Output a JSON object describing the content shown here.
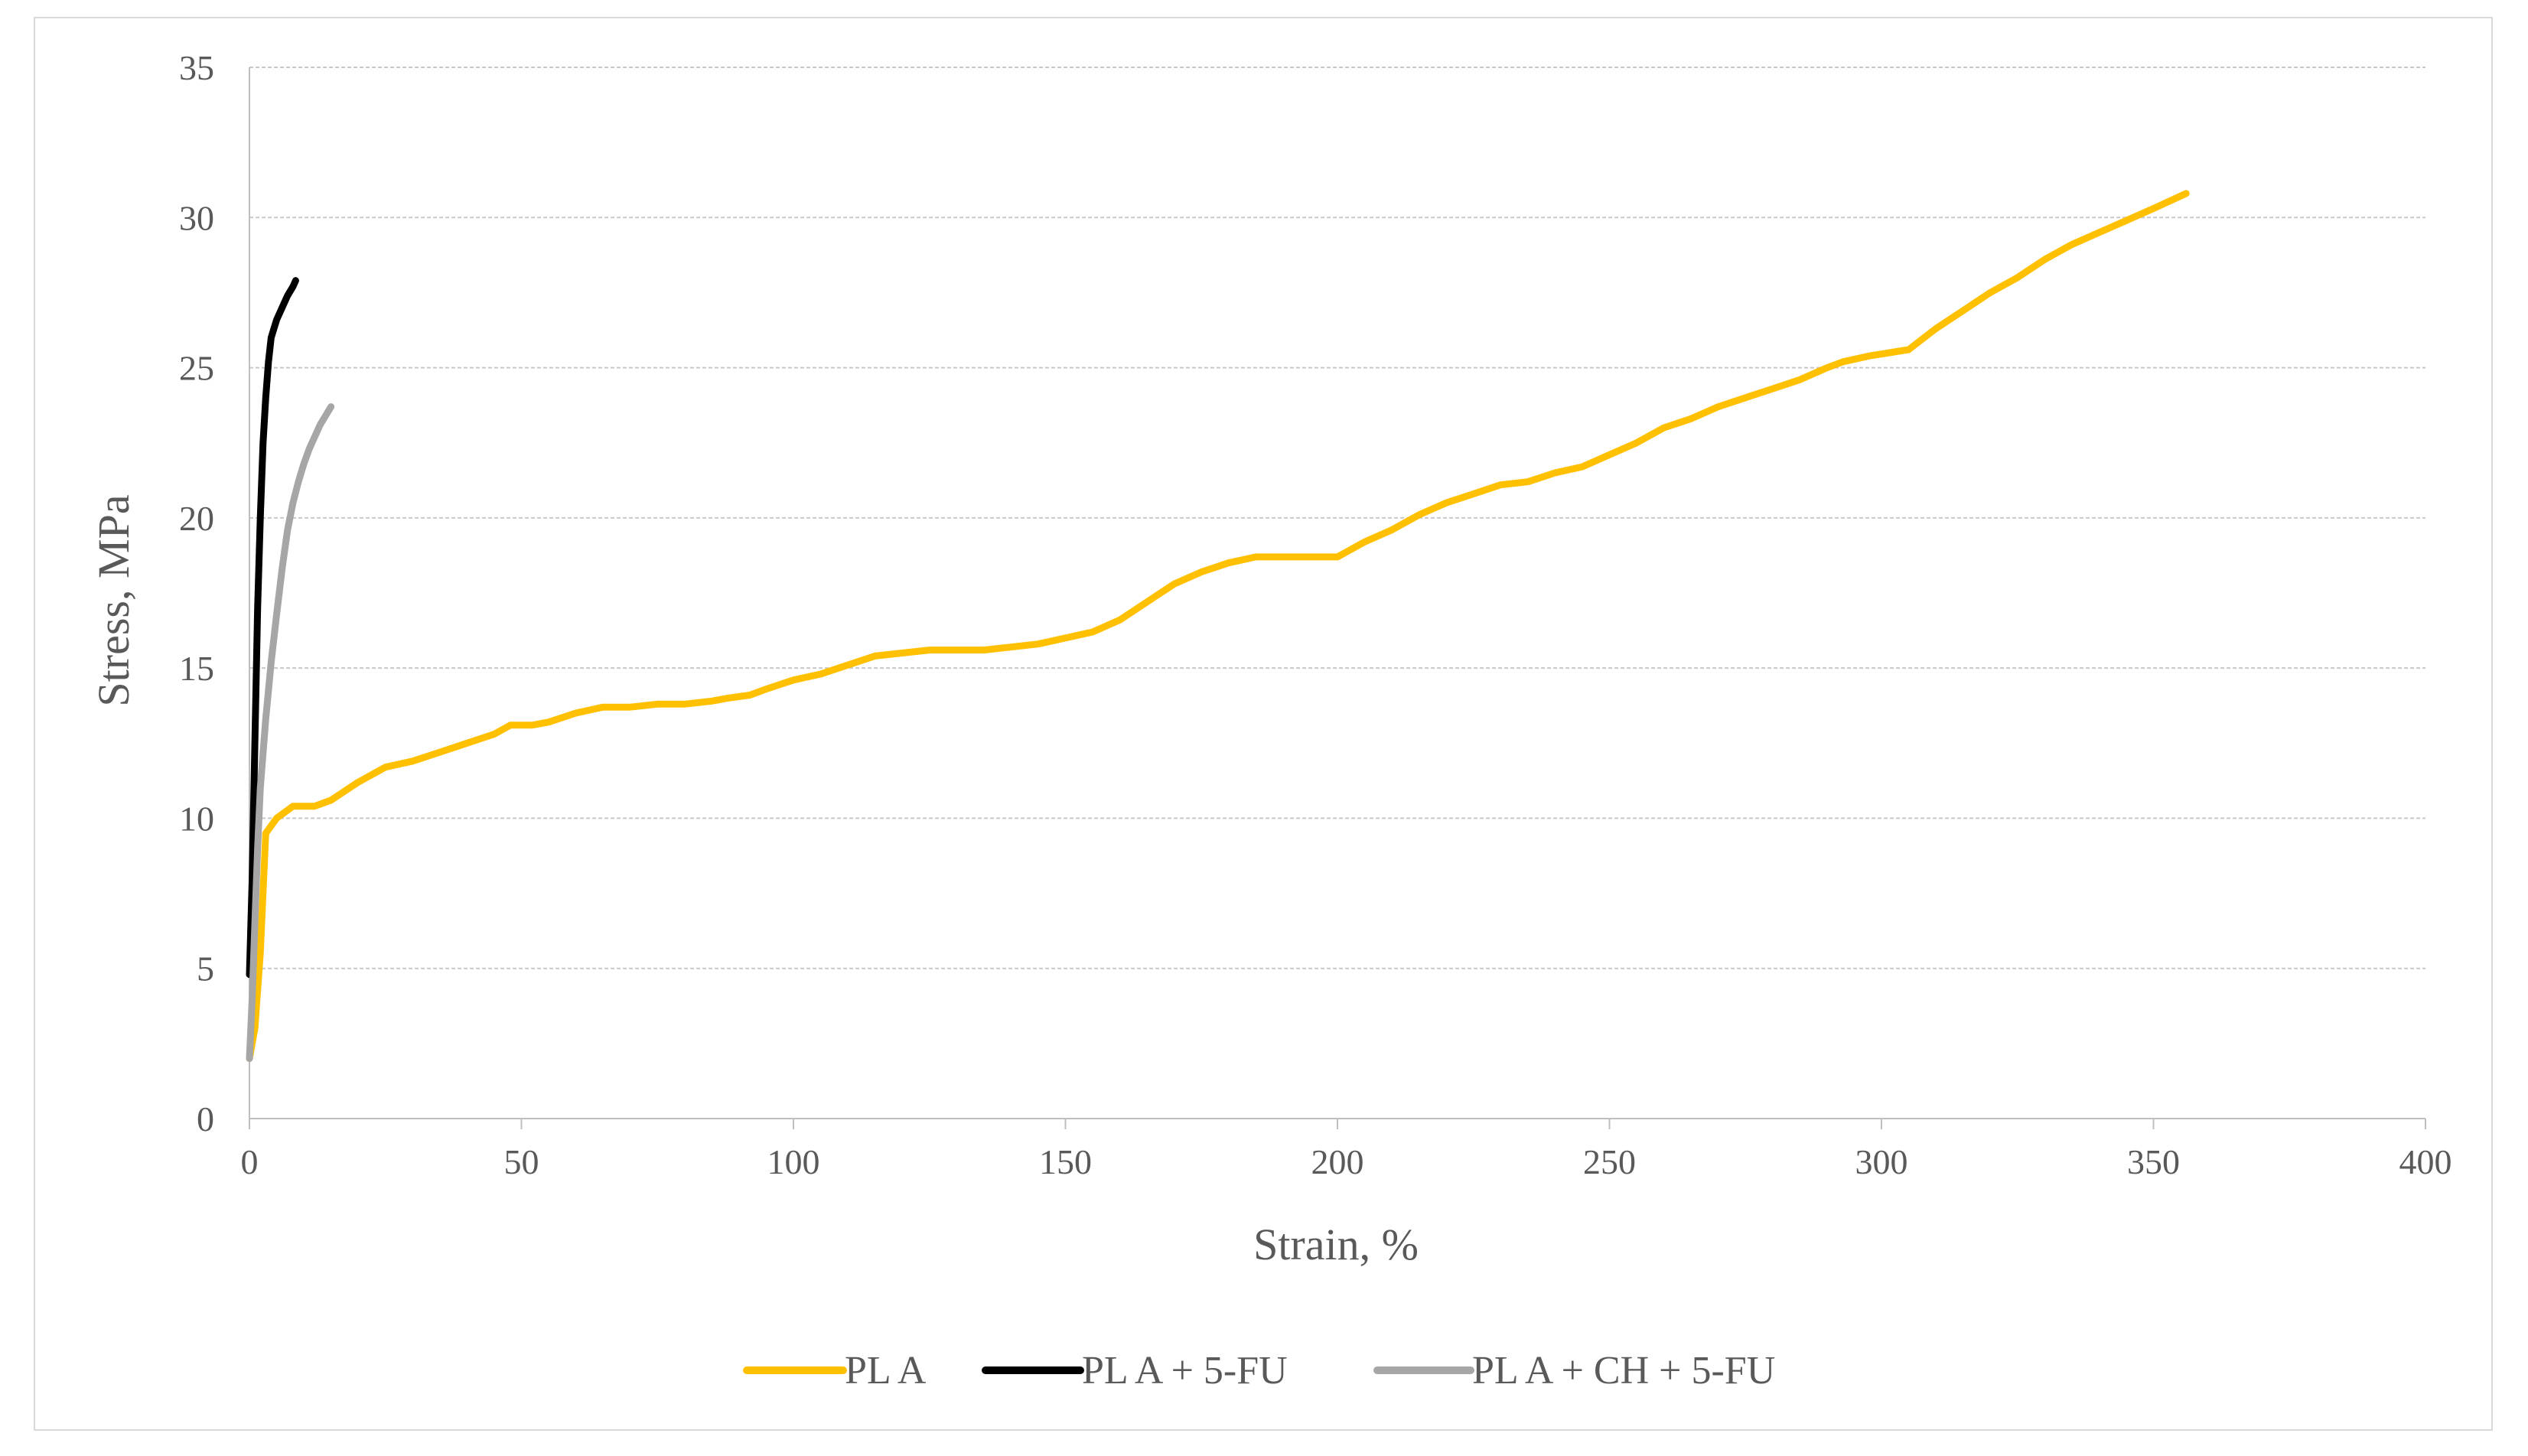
{
  "chart_data": {
    "type": "line",
    "title": "",
    "xlabel": "Strain,  %",
    "ylabel": "Stress,  MPa",
    "xlim": [
      0,
      400
    ],
    "ylim": [
      0,
      35
    ],
    "x_ticks": [
      0,
      50,
      100,
      150,
      200,
      250,
      300,
      350,
      400
    ],
    "y_ticks": [
      0,
      5,
      10,
      15,
      20,
      25,
      30,
      35
    ],
    "grid": "horizontal",
    "legend_position": "bottom",
    "series": [
      {
        "name": "PL A",
        "color": "#FFC000",
        "x": [
          0,
          1,
          2,
          3,
          5,
          8,
          10,
          12,
          15,
          20,
          25,
          30,
          35,
          40,
          45,
          48,
          52,
          55,
          60,
          65,
          70,
          75,
          80,
          85,
          88,
          92,
          95,
          100,
          105,
          110,
          115,
          120,
          125,
          130,
          135,
          140,
          145,
          150,
          155,
          160,
          165,
          170,
          175,
          180,
          185,
          190,
          195,
          200,
          205,
          210,
          215,
          220,
          225,
          230,
          235,
          240,
          245,
          250,
          255,
          260,
          265,
          270,
          275,
          280,
          285,
          290,
          293,
          298,
          305,
          310,
          315,
          320,
          325,
          330,
          335,
          340,
          345,
          350,
          356
        ],
        "y": [
          2.0,
          3.0,
          5.5,
          9.5,
          10.0,
          10.4,
          10.4,
          10.4,
          10.6,
          11.2,
          11.7,
          11.9,
          12.2,
          12.5,
          12.8,
          13.1,
          13.1,
          13.2,
          13.5,
          13.7,
          13.7,
          13.8,
          13.8,
          13.9,
          14.0,
          14.1,
          14.3,
          14.6,
          14.8,
          15.1,
          15.4,
          15.5,
          15.6,
          15.6,
          15.6,
          15.7,
          15.8,
          16.0,
          16.2,
          16.6,
          17.2,
          17.8,
          18.2,
          18.5,
          18.7,
          18.7,
          18.7,
          18.7,
          19.2,
          19.6,
          20.1,
          20.5,
          20.8,
          21.1,
          21.2,
          21.5,
          21.7,
          22.1,
          22.5,
          23.0,
          23.3,
          23.7,
          24.0,
          24.3,
          24.6,
          25.0,
          25.2,
          25.4,
          25.6,
          26.3,
          26.9,
          27.5,
          28.0,
          28.6,
          29.1,
          29.5,
          29.9,
          30.3,
          30.8
        ]
      },
      {
        "name": "PL A + 5-FU",
        "color": "#000000",
        "x": [
          0,
          0.5,
          1,
          1.5,
          2,
          2.5,
          3,
          3.5,
          4,
          4.5,
          5,
          6,
          7,
          8,
          8.5
        ],
        "y": [
          4.8,
          8.0,
          12.5,
          17.0,
          20.0,
          22.5,
          24.0,
          25.2,
          26.0,
          26.3,
          26.6,
          27.0,
          27.4,
          27.7,
          27.9
        ]
      },
      {
        "name": "PL A + CH + 5-FU",
        "color": "#A6A6A6",
        "x": [
          0,
          0.5,
          1,
          1.5,
          2,
          3,
          4,
          5,
          6,
          7,
          8,
          9,
          10,
          11,
          12,
          13,
          14,
          15
        ],
        "y": [
          2.0,
          4.0,
          6.5,
          9.0,
          11.0,
          13.3,
          15.2,
          16.8,
          18.3,
          19.6,
          20.5,
          21.2,
          21.8,
          22.3,
          22.7,
          23.1,
          23.4,
          23.7
        ]
      }
    ]
  }
}
